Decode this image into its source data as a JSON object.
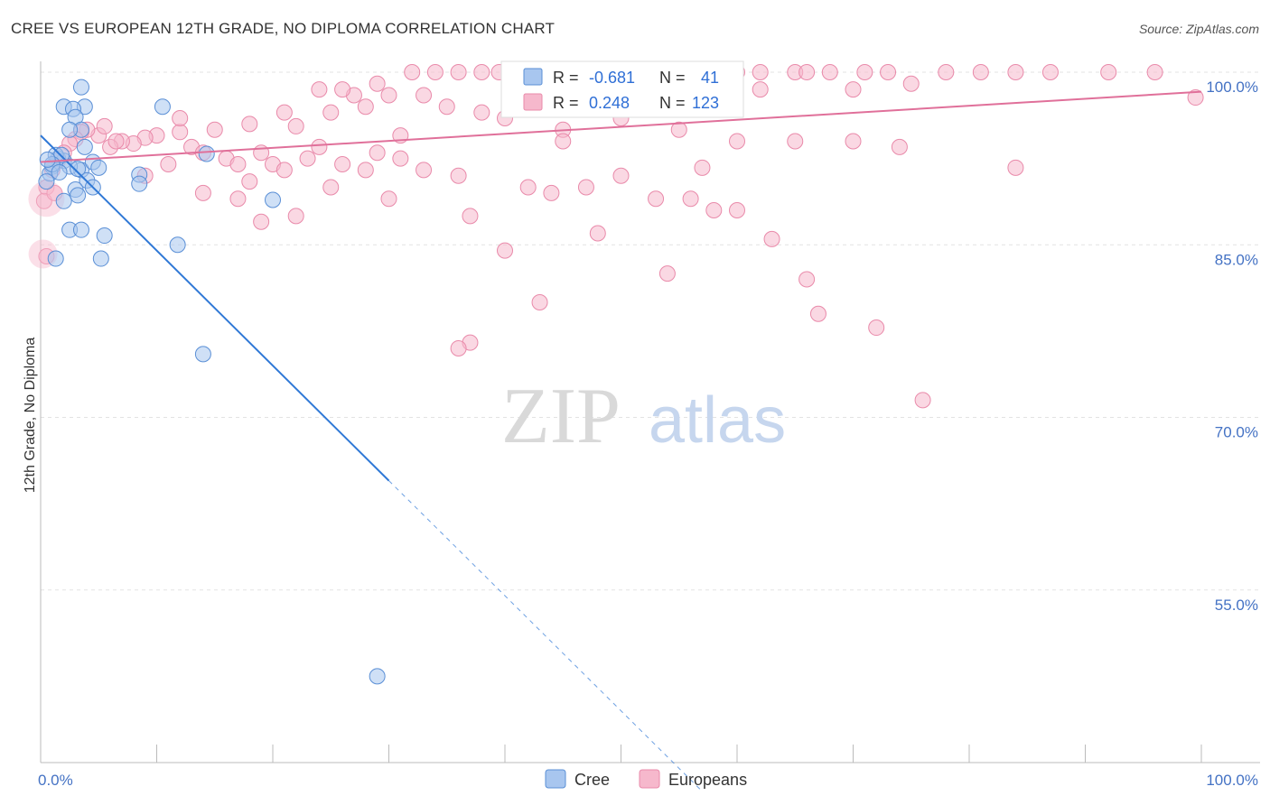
{
  "title": "CREE VS EUROPEAN 12TH GRADE, NO DIPLOMA CORRELATION CHART",
  "source": "Source: ZipAtlas.com",
  "watermark": {
    "zip": "ZIP",
    "atlas": "atlas"
  },
  "colors": {
    "cree_fill": "#a8c6ef",
    "cree_stroke": "#5a8fd6",
    "cree_line": "#2f78d6",
    "eur_fill": "#f6b8cc",
    "eur_stroke": "#e98aaa",
    "eur_line": "#e0709a",
    "tick_label": "#4472c4",
    "grid": "#e3e3e3"
  },
  "legend": {
    "r_label": "R =",
    "n_label": "N =",
    "cree": {
      "r": "-0.681",
      "n": "41"
    },
    "europeans": {
      "r": "0.248",
      "n": "123"
    }
  },
  "chart_data": {
    "type": "scatter",
    "title": "CREE VS EUROPEAN 12TH GRADE, NO DIPLOMA CORRELATION CHART",
    "xlabel": "",
    "ylabel": "12th Grade, No Diploma",
    "xlim": [
      0,
      100
    ],
    "ylim": [
      40,
      100
    ],
    "x_tick_labels": [
      "0.0%",
      "100.0%"
    ],
    "y_ticks": [
      100,
      85,
      70,
      55
    ],
    "y_tick_labels": [
      "100.0%",
      "85.0%",
      "70.0%",
      "55.0%"
    ],
    "grid": true,
    "legend_position": "top-center",
    "series": [
      {
        "name": "Cree",
        "trend": {
          "x0": 0,
          "y0": 94.5,
          "x1": 30,
          "y1": 64.5,
          "dash_to_x": 57,
          "dash_to_y": 37.5
        },
        "points": [
          [
            1.5,
            92.5
          ],
          [
            2.0,
            92.3
          ],
          [
            1.0,
            91.8
          ],
          [
            0.8,
            91.2
          ],
          [
            0.5,
            90.5
          ],
          [
            3.5,
            91.5
          ],
          [
            2.5,
            91.8
          ],
          [
            1.3,
            92.8
          ],
          [
            1.8,
            92.8
          ],
          [
            3.8,
            97.0
          ],
          [
            2.0,
            97.0
          ],
          [
            3.5,
            98.7
          ],
          [
            2.8,
            96.8
          ],
          [
            3.0,
            96.1
          ],
          [
            3.5,
            95.0
          ],
          [
            2.5,
            95.0
          ],
          [
            3.8,
            93.5
          ],
          [
            4.0,
            90.6
          ],
          [
            4.5,
            92.2
          ],
          [
            5.0,
            91.7
          ],
          [
            4.5,
            90.0
          ],
          [
            3.0,
            89.8
          ],
          [
            3.2,
            89.3
          ],
          [
            2.0,
            88.8
          ],
          [
            10.5,
            97.0
          ],
          [
            8.5,
            91.1
          ],
          [
            8.5,
            90.3
          ],
          [
            14.3,
            92.9
          ],
          [
            20.0,
            88.9
          ],
          [
            2.5,
            86.3
          ],
          [
            3.5,
            86.3
          ],
          [
            5.5,
            85.8
          ],
          [
            5.2,
            83.8
          ],
          [
            1.3,
            83.8
          ],
          [
            11.8,
            85.0
          ],
          [
            14.0,
            75.5
          ],
          [
            29.0,
            47.5
          ],
          [
            1.0,
            92.0
          ],
          [
            0.6,
            92.4
          ],
          [
            3.2,
            91.6
          ],
          [
            1.6,
            91.3
          ]
        ]
      },
      {
        "name": "Europeans",
        "trend": {
          "x0": 0,
          "y0": 92.2,
          "x1": 100,
          "y1": 98.3
        },
        "points": [
          [
            32,
            100
          ],
          [
            34,
            100
          ],
          [
            36,
            100
          ],
          [
            38,
            100
          ],
          [
            39.5,
            100
          ],
          [
            41,
            100
          ],
          [
            43,
            100
          ],
          [
            48,
            100
          ],
          [
            51,
            100
          ],
          [
            53,
            100
          ],
          [
            55,
            100
          ],
          [
            57,
            100
          ],
          [
            60,
            100
          ],
          [
            62,
            100
          ],
          [
            65,
            100
          ],
          [
            68,
            100
          ],
          [
            71,
            100
          ],
          [
            73,
            100
          ],
          [
            78,
            100
          ],
          [
            81,
            100
          ],
          [
            84,
            100
          ],
          [
            87,
            100
          ],
          [
            92,
            100
          ],
          [
            96,
            100
          ],
          [
            70,
            98.5
          ],
          [
            99.5,
            97.8
          ],
          [
            30,
            98.0
          ],
          [
            27,
            98.0
          ],
          [
            35,
            97.0
          ],
          [
            40,
            96.0
          ],
          [
            45,
            95.0
          ],
          [
            50,
            96.0
          ],
          [
            55,
            95.0
          ],
          [
            60,
            94.0
          ],
          [
            65,
            94.0
          ],
          [
            70,
            94.0
          ],
          [
            25,
            96.5
          ],
          [
            22,
            95.3
          ],
          [
            18,
            95.5
          ],
          [
            15,
            95.0
          ],
          [
            12,
            94.8
          ],
          [
            10,
            94.5
          ],
          [
            9,
            94.3
          ],
          [
            8,
            93.8
          ],
          [
            7,
            94.0
          ],
          [
            6,
            93.5
          ],
          [
            5,
            94.5
          ],
          [
            4,
            95.0
          ],
          [
            3.5,
            94.8
          ],
          [
            3,
            94.2
          ],
          [
            2.5,
            93.8
          ],
          [
            2,
            93.0
          ],
          [
            1.5,
            92.3
          ],
          [
            1,
            91.5
          ],
          [
            0.5,
            90.0
          ],
          [
            0.3,
            88.8
          ],
          [
            13,
            93.5
          ],
          [
            14,
            93.0
          ],
          [
            16,
            92.5
          ],
          [
            17,
            92.0
          ],
          [
            19,
            93.0
          ],
          [
            20,
            92.0
          ],
          [
            21,
            91.5
          ],
          [
            23,
            92.5
          ],
          [
            24,
            93.5
          ],
          [
            26,
            92.0
          ],
          [
            28,
            91.5
          ],
          [
            29,
            93.0
          ],
          [
            31,
            92.5
          ],
          [
            33,
            91.5
          ],
          [
            36,
            91.0
          ],
          [
            42,
            90.0
          ],
          [
            44,
            89.5
          ],
          [
            47,
            90.0
          ],
          [
            50,
            91.0
          ],
          [
            53,
            89.0
          ],
          [
            56,
            89.0
          ],
          [
            60,
            88.0
          ],
          [
            63,
            85.5
          ],
          [
            66,
            82.0
          ],
          [
            58,
            88.0
          ],
          [
            48,
            86.0
          ],
          [
            37,
            87.5
          ],
          [
            40,
            84.5
          ],
          [
            43,
            80.0
          ],
          [
            37,
            76.5
          ],
          [
            36,
            76.0
          ],
          [
            54,
            82.5
          ],
          [
            67,
            79.0
          ],
          [
            72,
            77.8
          ],
          [
            76,
            71.5
          ],
          [
            84,
            91.7
          ],
          [
            74,
            93.5
          ],
          [
            57,
            91.7
          ],
          [
            25,
            90.0
          ],
          [
            30,
            89.0
          ],
          [
            18,
            90.5
          ],
          [
            14,
            89.5
          ],
          [
            9,
            91.0
          ],
          [
            22,
            87.5
          ],
          [
            17,
            89.0
          ],
          [
            19,
            87.0
          ],
          [
            11,
            92.0
          ],
          [
            12,
            96.0
          ],
          [
            21,
            96.5
          ],
          [
            24,
            98.5
          ],
          [
            26,
            98.5
          ],
          [
            28,
            97.0
          ],
          [
            31,
            94.5
          ],
          [
            38,
            96.5
          ],
          [
            45,
            94.0
          ],
          [
            47,
            97.0
          ],
          [
            29,
            99.0
          ],
          [
            33,
            98.0
          ],
          [
            54,
            99.0
          ],
          [
            62,
            98.5
          ],
          [
            66,
            100
          ],
          [
            75,
            99.0
          ],
          [
            1.2,
            89.5
          ],
          [
            0.5,
            84.0
          ],
          [
            6.5,
            94.0
          ],
          [
            5.5,
            95.3
          ]
        ]
      }
    ]
  }
}
